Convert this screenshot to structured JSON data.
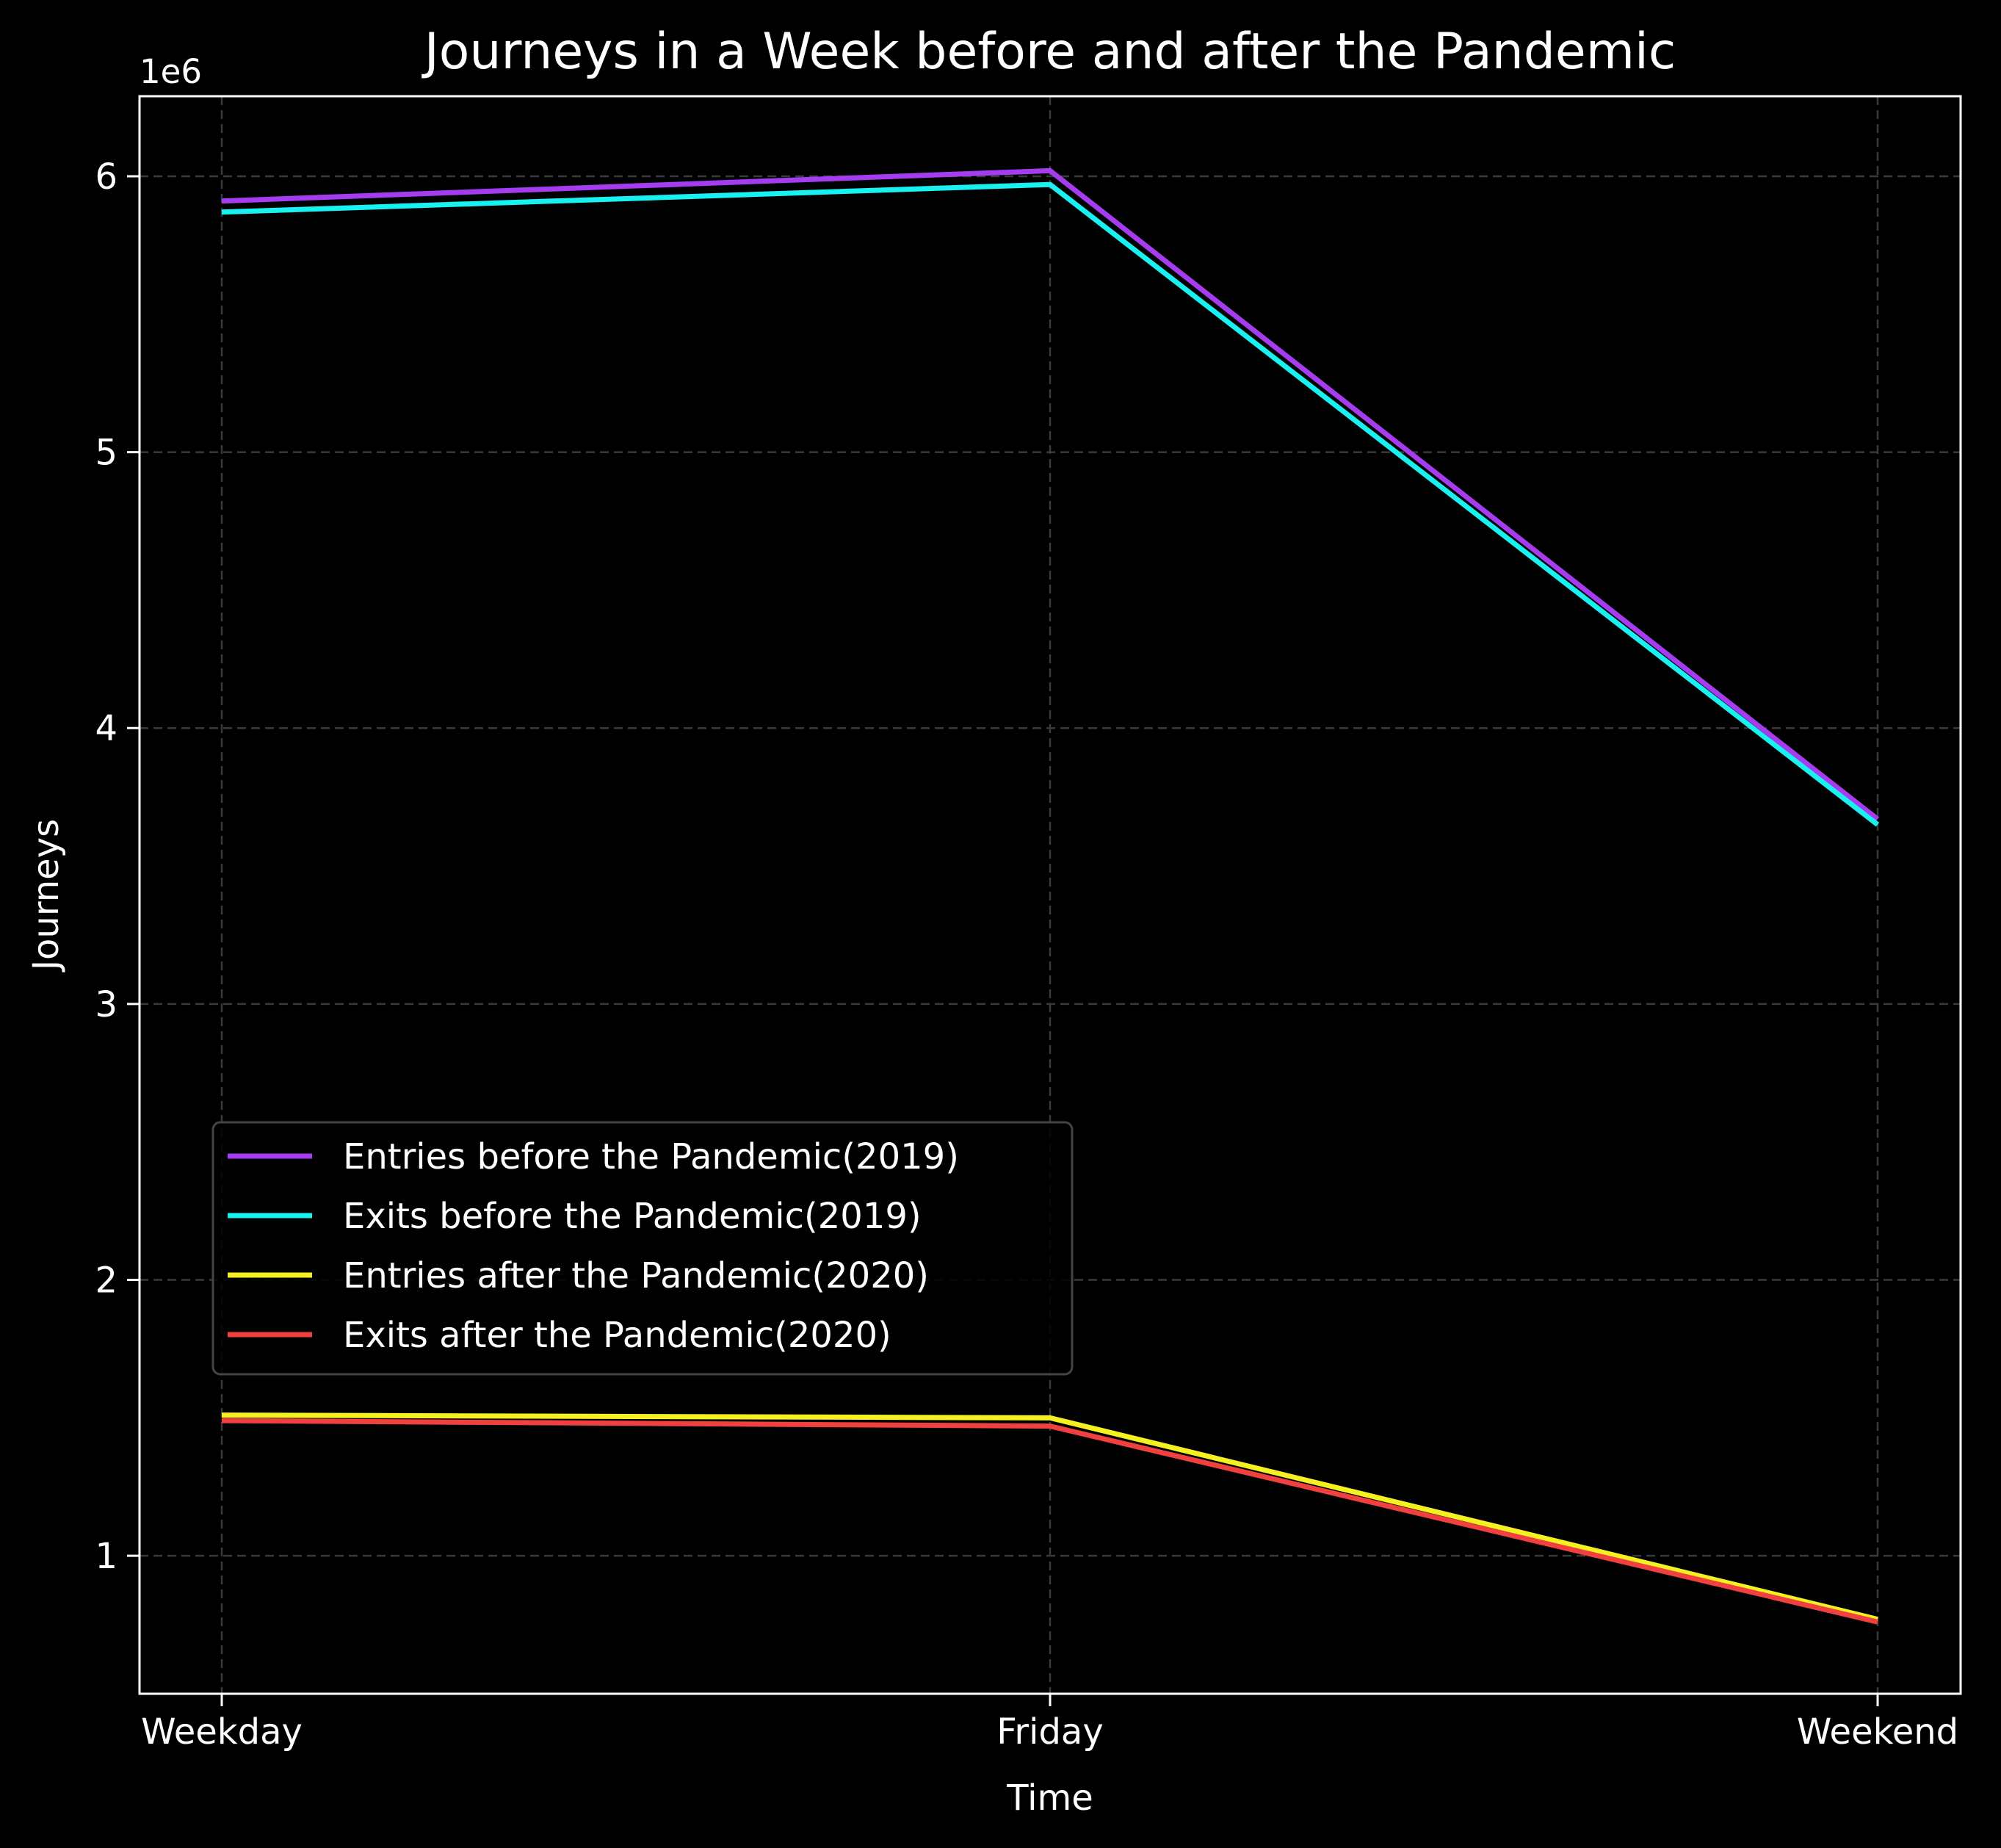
{
  "chart_data": {
    "type": "line",
    "title": "Journeys in a Week before and after the Pandemic",
    "xlabel": "Time",
    "ylabel": "Journeys",
    "y_offset_label": "1e6",
    "categories": [
      "Weekday",
      "Friday",
      "Weekend"
    ],
    "ylim": [
      500000,
      6290000
    ],
    "yticks": [
      1000000,
      2000000,
      3000000,
      4000000,
      5000000,
      6000000
    ],
    "ytick_labels": [
      "1",
      "2",
      "3",
      "4",
      "5",
      "6"
    ],
    "grid": true,
    "legend_position": "lower-left",
    "background": "#000000",
    "series": [
      {
        "name": "Entries before the Pandemic(2019)",
        "color": "#a63cf0",
        "values": [
          5910000,
          6020000,
          3670000
        ]
      },
      {
        "name": "Exits before the Pandemic(2019)",
        "color": "#19f0f0",
        "values": [
          5870000,
          5970000,
          3650000
        ]
      },
      {
        "name": "Entries after the Pandemic(2020)",
        "color": "#f5f020",
        "values": [
          1510000,
          1500000,
          770000
        ]
      },
      {
        "name": "Exits after the Pandemic(2020)",
        "color": "#f04040",
        "values": [
          1490000,
          1470000,
          760000
        ]
      }
    ]
  }
}
